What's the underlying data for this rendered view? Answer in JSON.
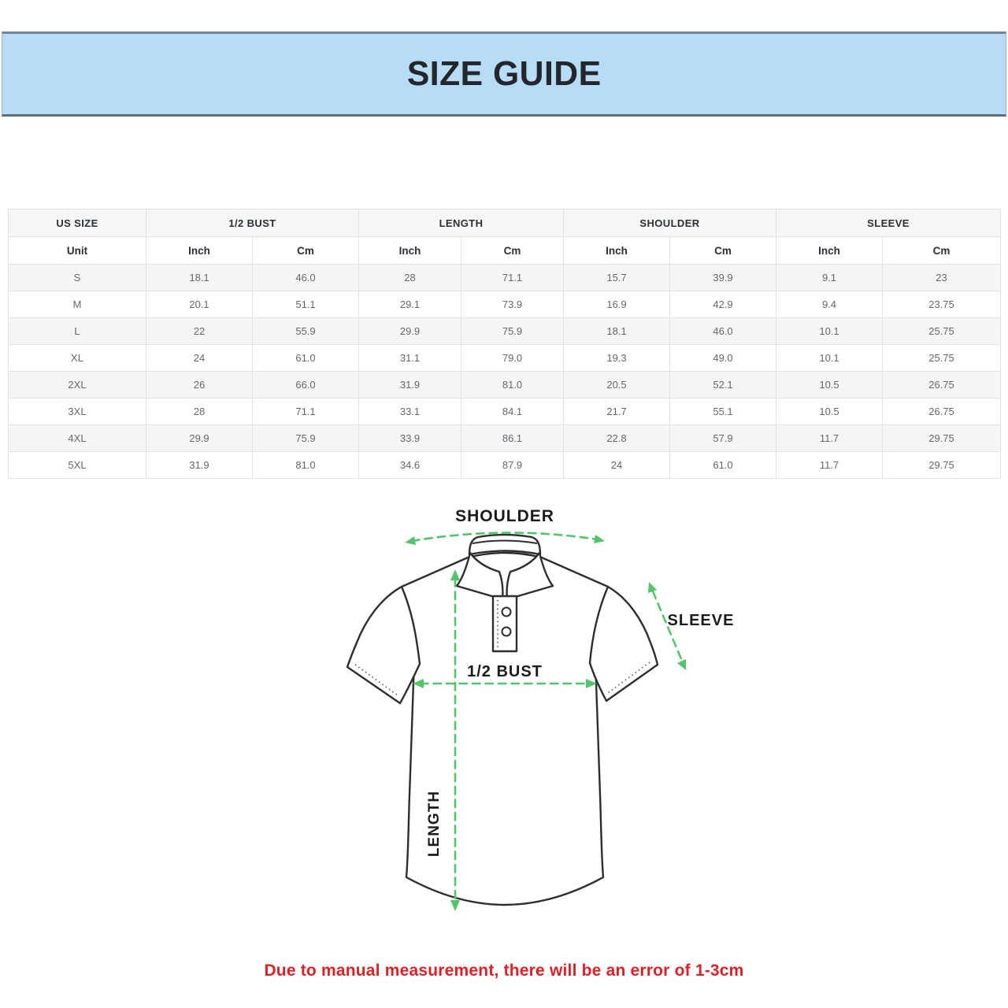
{
  "banner": {
    "title": "SIZE GUIDE",
    "background_color": "#b7dcf5",
    "border_color": "#6b7985"
  },
  "table": {
    "groups": [
      {
        "label": "US SIZE",
        "span": 1
      },
      {
        "label": "1/2 BUST",
        "span": 2
      },
      {
        "label": "LENGTH",
        "span": 2
      },
      {
        "label": "SHOULDER",
        "span": 2
      },
      {
        "label": "SLEEVE",
        "span": 2
      }
    ],
    "subheaders": [
      "Unit",
      "Inch",
      "Cm",
      "Inch",
      "Cm",
      "Inch",
      "Cm",
      "Inch",
      "Cm"
    ],
    "rows": [
      [
        "S",
        "18.1",
        "46.0",
        "28",
        "71.1",
        "15.7",
        "39.9",
        "9.1",
        "23"
      ],
      [
        "M",
        "20.1",
        "51.1",
        "29.1",
        "73.9",
        "16.9",
        "42.9",
        "9.4",
        "23.75"
      ],
      [
        "L",
        "22",
        "55.9",
        "29.9",
        "75.9",
        "18.1",
        "46.0",
        "10.1",
        "25.75"
      ],
      [
        "XL",
        "24",
        "61.0",
        "31.1",
        "79.0",
        "19.3",
        "49.0",
        "10.1",
        "25.75"
      ],
      [
        "2XL",
        "26",
        "66.0",
        "31.9",
        "81.0",
        "20.5",
        "52.1",
        "10.5",
        "26.75"
      ],
      [
        "3XL",
        "28",
        "71.1",
        "33.1",
        "84.1",
        "21.7",
        "55.1",
        "10.5",
        "26.75"
      ],
      [
        "4XL",
        "29.9",
        "75.9",
        "33.9",
        "86.1",
        "22.8",
        "57.9",
        "11.7",
        "29.75"
      ],
      [
        "5XL",
        "31.9",
        "81.0",
        "34.6",
        "87.9",
        "24",
        "61.0",
        "11.7",
        "29.75"
      ]
    ],
    "stripe_color": "#f5f5f5",
    "border_color": "#e2e2e2"
  },
  "diagram": {
    "shoulder_label": "SHOULDER",
    "sleeve_label": "SLEEVE",
    "bust_label": "1/2 BUST",
    "length_label": "LENGTH",
    "arrow_color": "#53c46b"
  },
  "note": {
    "text": "Due to manual measurement, there will be an error of 1-3cm",
    "color": "#e02027"
  }
}
